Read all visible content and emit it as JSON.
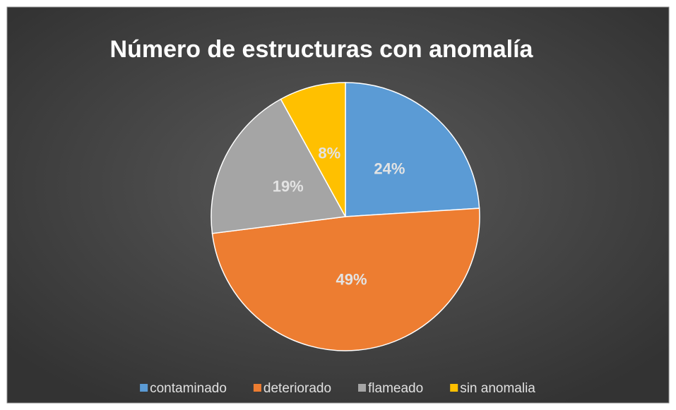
{
  "chart_data": {
    "type": "pie",
    "title": "Número de estructuras con anomalía",
    "categories": [
      "contaminado",
      "deteriorado",
      "flameado",
      "sin anomalia"
    ],
    "values": [
      24,
      49,
      19,
      8
    ],
    "value_labels": [
      "24%",
      "49%",
      "19%",
      "8%"
    ],
    "colors": [
      "#5b9bd5",
      "#ed7d31",
      "#a5a5a5",
      "#ffc000"
    ],
    "legend": "bottom"
  }
}
